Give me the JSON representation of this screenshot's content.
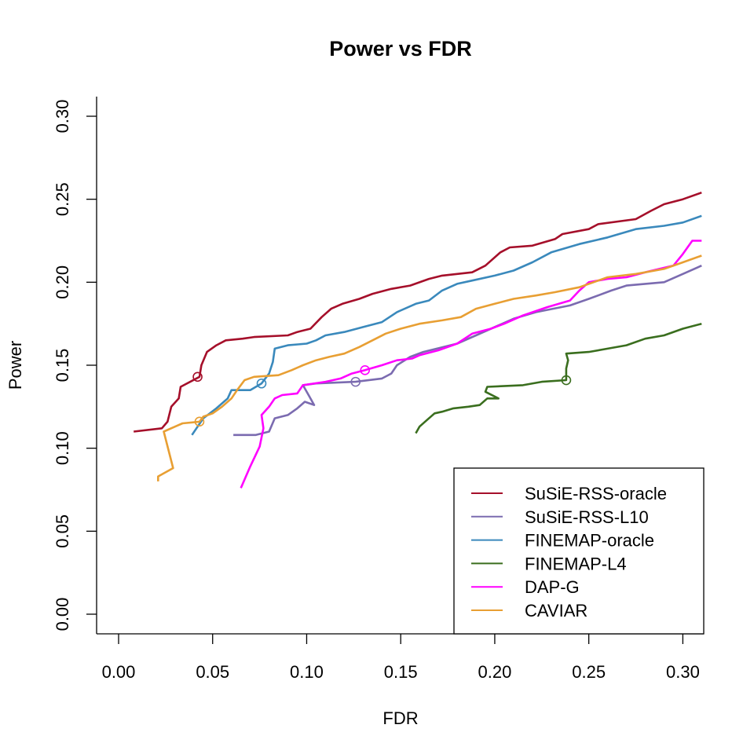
{
  "chart_data": {
    "type": "line",
    "title": "Power vs FDR",
    "xlabel": "FDR",
    "ylabel": "Power",
    "xlim": [
      0.0,
      0.31
    ],
    "ylim": [
      0.0,
      0.3
    ],
    "x_ticks": [
      "0.00",
      "0.05",
      "0.10",
      "0.15",
      "0.20",
      "0.25",
      "0.30"
    ],
    "y_ticks": [
      "0.00",
      "0.05",
      "0.10",
      "0.15",
      "0.20",
      "0.25",
      "0.30"
    ],
    "grid": false,
    "legend_position": "bottom-right",
    "series": [
      {
        "name": "SuSiE-RSS-oracle",
        "color": "#A50F2A",
        "marker": {
          "x": 0.042,
          "y": 0.143
        },
        "points": [
          [
            0.008,
            0.11
          ],
          [
            0.023,
            0.112
          ],
          [
            0.026,
            0.116
          ],
          [
            0.028,
            0.125
          ],
          [
            0.032,
            0.13
          ],
          [
            0.033,
            0.137
          ],
          [
            0.043,
            0.143
          ],
          [
            0.044,
            0.15
          ],
          [
            0.047,
            0.158
          ],
          [
            0.052,
            0.162
          ],
          [
            0.057,
            0.165
          ],
          [
            0.066,
            0.166
          ],
          [
            0.072,
            0.167
          ],
          [
            0.09,
            0.168
          ],
          [
            0.095,
            0.17
          ],
          [
            0.102,
            0.172
          ],
          [
            0.108,
            0.179
          ],
          [
            0.113,
            0.184
          ],
          [
            0.119,
            0.187
          ],
          [
            0.128,
            0.19
          ],
          [
            0.135,
            0.193
          ],
          [
            0.145,
            0.196
          ],
          [
            0.155,
            0.198
          ],
          [
            0.165,
            0.202
          ],
          [
            0.172,
            0.204
          ],
          [
            0.188,
            0.206
          ],
          [
            0.195,
            0.21
          ],
          [
            0.203,
            0.218
          ],
          [
            0.208,
            0.221
          ],
          [
            0.22,
            0.222
          ],
          [
            0.232,
            0.226
          ],
          [
            0.236,
            0.229
          ],
          [
            0.25,
            0.232
          ],
          [
            0.255,
            0.235
          ],
          [
            0.275,
            0.238
          ],
          [
            0.283,
            0.243
          ],
          [
            0.29,
            0.247
          ],
          [
            0.3,
            0.25
          ],
          [
            0.31,
            0.254
          ]
        ]
      },
      {
        "name": "SuSiE-RSS-L10",
        "color": "#7B6BB0",
        "marker": {
          "x": 0.126,
          "y": 0.14
        },
        "points": [
          [
            0.061,
            0.108
          ],
          [
            0.073,
            0.108
          ],
          [
            0.08,
            0.11
          ],
          [
            0.083,
            0.118
          ],
          [
            0.09,
            0.12
          ],
          [
            0.095,
            0.124
          ],
          [
            0.099,
            0.128
          ],
          [
            0.104,
            0.126
          ],
          [
            0.101,
            0.132
          ],
          [
            0.098,
            0.138
          ],
          [
            0.105,
            0.139
          ],
          [
            0.126,
            0.14
          ],
          [
            0.14,
            0.142
          ],
          [
            0.145,
            0.145
          ],
          [
            0.148,
            0.15
          ],
          [
            0.155,
            0.155
          ],
          [
            0.162,
            0.158
          ],
          [
            0.18,
            0.163
          ],
          [
            0.19,
            0.168
          ],
          [
            0.198,
            0.172
          ],
          [
            0.21,
            0.178
          ],
          [
            0.222,
            0.182
          ],
          [
            0.24,
            0.186
          ],
          [
            0.25,
            0.19
          ],
          [
            0.262,
            0.195
          ],
          [
            0.27,
            0.198
          ],
          [
            0.29,
            0.2
          ],
          [
            0.3,
            0.205
          ],
          [
            0.31,
            0.21
          ]
        ]
      },
      {
        "name": "FINEMAP-oracle",
        "color": "#3A89BC",
        "marker": {
          "x": 0.076,
          "y": 0.139
        },
        "points": [
          [
            0.039,
            0.108
          ],
          [
            0.045,
            0.118
          ],
          [
            0.052,
            0.124
          ],
          [
            0.058,
            0.13
          ],
          [
            0.06,
            0.135
          ],
          [
            0.07,
            0.135
          ],
          [
            0.076,
            0.139
          ],
          [
            0.08,
            0.145
          ],
          [
            0.082,
            0.152
          ],
          [
            0.083,
            0.16
          ],
          [
            0.09,
            0.162
          ],
          [
            0.1,
            0.163
          ],
          [
            0.105,
            0.165
          ],
          [
            0.11,
            0.168
          ],
          [
            0.12,
            0.17
          ],
          [
            0.13,
            0.173
          ],
          [
            0.14,
            0.176
          ],
          [
            0.148,
            0.182
          ],
          [
            0.158,
            0.187
          ],
          [
            0.165,
            0.189
          ],
          [
            0.172,
            0.195
          ],
          [
            0.18,
            0.199
          ],
          [
            0.188,
            0.201
          ],
          [
            0.2,
            0.204
          ],
          [
            0.21,
            0.207
          ],
          [
            0.22,
            0.212
          ],
          [
            0.23,
            0.218
          ],
          [
            0.245,
            0.223
          ],
          [
            0.26,
            0.227
          ],
          [
            0.275,
            0.232
          ],
          [
            0.29,
            0.234
          ],
          [
            0.3,
            0.236
          ],
          [
            0.31,
            0.24
          ]
        ]
      },
      {
        "name": "FINEMAP-L4",
        "color": "#3A6E1E",
        "marker": {
          "x": 0.238,
          "y": 0.141
        },
        "points": [
          [
            0.158,
            0.109
          ],
          [
            0.16,
            0.113
          ],
          [
            0.164,
            0.117
          ],
          [
            0.168,
            0.121
          ],
          [
            0.172,
            0.122
          ],
          [
            0.178,
            0.124
          ],
          [
            0.186,
            0.125
          ],
          [
            0.192,
            0.126
          ],
          [
            0.196,
            0.13
          ],
          [
            0.202,
            0.13
          ],
          [
            0.195,
            0.134
          ],
          [
            0.196,
            0.137
          ],
          [
            0.215,
            0.138
          ],
          [
            0.225,
            0.14
          ],
          [
            0.238,
            0.141
          ],
          [
            0.238,
            0.148
          ],
          [
            0.239,
            0.153
          ],
          [
            0.238,
            0.157
          ],
          [
            0.25,
            0.158
          ],
          [
            0.26,
            0.16
          ],
          [
            0.27,
            0.162
          ],
          [
            0.28,
            0.166
          ],
          [
            0.29,
            0.168
          ],
          [
            0.3,
            0.172
          ],
          [
            0.31,
            0.175
          ]
        ]
      },
      {
        "name": "DAP-G",
        "color": "#FF00FF",
        "marker": {
          "x": 0.131,
          "y": 0.147
        },
        "points": [
          [
            0.065,
            0.076
          ],
          [
            0.07,
            0.089
          ],
          [
            0.075,
            0.101
          ],
          [
            0.077,
            0.112
          ],
          [
            0.076,
            0.12
          ],
          [
            0.08,
            0.125
          ],
          [
            0.083,
            0.13
          ],
          [
            0.087,
            0.132
          ],
          [
            0.095,
            0.133
          ],
          [
            0.098,
            0.138
          ],
          [
            0.11,
            0.14
          ],
          [
            0.118,
            0.142
          ],
          [
            0.124,
            0.145
          ],
          [
            0.131,
            0.147
          ],
          [
            0.14,
            0.15
          ],
          [
            0.148,
            0.153
          ],
          [
            0.156,
            0.154
          ],
          [
            0.16,
            0.156
          ],
          [
            0.17,
            0.159
          ],
          [
            0.18,
            0.163
          ],
          [
            0.188,
            0.169
          ],
          [
            0.198,
            0.172
          ],
          [
            0.205,
            0.175
          ],
          [
            0.215,
            0.18
          ],
          [
            0.228,
            0.185
          ],
          [
            0.24,
            0.189
          ],
          [
            0.245,
            0.195
          ],
          [
            0.25,
            0.2
          ],
          [
            0.26,
            0.202
          ],
          [
            0.27,
            0.203
          ],
          [
            0.28,
            0.206
          ],
          [
            0.295,
            0.21
          ],
          [
            0.3,
            0.217
          ],
          [
            0.305,
            0.225
          ],
          [
            0.31,
            0.225
          ]
        ]
      },
      {
        "name": "CAVIAR",
        "color": "#E89F33",
        "marker": {
          "x": 0.043,
          "y": 0.116
        },
        "points": [
          [
            0.021,
            0.08
          ],
          [
            0.021,
            0.083
          ],
          [
            0.029,
            0.088
          ],
          [
            0.024,
            0.11
          ],
          [
            0.03,
            0.113
          ],
          [
            0.034,
            0.115
          ],
          [
            0.043,
            0.116
          ],
          [
            0.045,
            0.119
          ],
          [
            0.05,
            0.121
          ],
          [
            0.055,
            0.125
          ],
          [
            0.06,
            0.13
          ],
          [
            0.063,
            0.135
          ],
          [
            0.067,
            0.141
          ],
          [
            0.072,
            0.143
          ],
          [
            0.085,
            0.144
          ],
          [
            0.092,
            0.147
          ],
          [
            0.098,
            0.15
          ],
          [
            0.105,
            0.153
          ],
          [
            0.112,
            0.155
          ],
          [
            0.12,
            0.157
          ],
          [
            0.128,
            0.161
          ],
          [
            0.135,
            0.165
          ],
          [
            0.142,
            0.169
          ],
          [
            0.15,
            0.172
          ],
          [
            0.16,
            0.175
          ],
          [
            0.172,
            0.177
          ],
          [
            0.182,
            0.179
          ],
          [
            0.19,
            0.184
          ],
          [
            0.2,
            0.187
          ],
          [
            0.21,
            0.19
          ],
          [
            0.222,
            0.192
          ],
          [
            0.232,
            0.194
          ],
          [
            0.245,
            0.197
          ],
          [
            0.26,
            0.203
          ],
          [
            0.275,
            0.205
          ],
          [
            0.29,
            0.208
          ],
          [
            0.3,
            0.212
          ],
          [
            0.31,
            0.216
          ]
        ]
      }
    ]
  }
}
